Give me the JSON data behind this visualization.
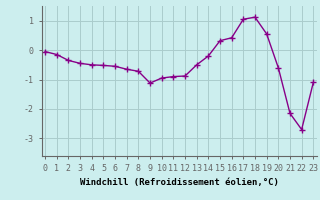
{
  "x": [
    0,
    1,
    2,
    3,
    4,
    5,
    6,
    7,
    8,
    9,
    10,
    11,
    12,
    13,
    14,
    15,
    16,
    17,
    18,
    19,
    20,
    21,
    22,
    23
  ],
  "y": [
    -0.05,
    -0.15,
    -0.35,
    -0.45,
    -0.5,
    -0.52,
    -0.55,
    -0.65,
    -0.72,
    -1.12,
    -0.95,
    -0.9,
    -0.88,
    -0.5,
    -0.2,
    0.32,
    0.42,
    1.05,
    1.12,
    0.55,
    -0.6,
    -2.15,
    -2.7,
    -1.1
  ],
  "line_color": "#880088",
  "marker": "+",
  "marker_size": 4,
  "linewidth": 1.0,
  "bg_color": "#cceeee",
  "grid_color": "#aacccc",
  "xlabel": "Windchill (Refroidissement éolien,°C)",
  "xlabel_fontsize": 6.5,
  "yticks": [
    -3,
    -2,
    -1,
    0,
    1
  ],
  "xticks": [
    0,
    1,
    2,
    3,
    4,
    5,
    6,
    7,
    8,
    9,
    10,
    11,
    12,
    13,
    14,
    15,
    16,
    17,
    18,
    19,
    20,
    21,
    22,
    23
  ],
  "ylim": [
    -3.6,
    1.5
  ],
  "xlim": [
    -0.3,
    23.3
  ],
  "tick_fontsize": 6.0,
  "axis_color": "#666666"
}
